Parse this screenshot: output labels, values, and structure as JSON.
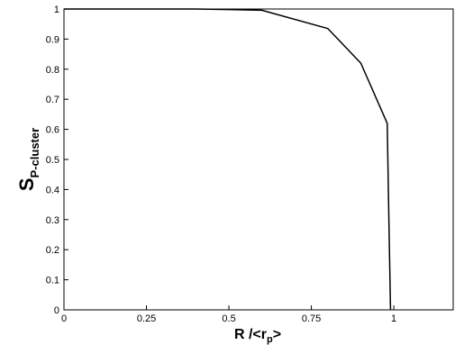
{
  "chart_data": {
    "type": "line",
    "title": "",
    "xlabel": {
      "main": "R /<r",
      "sub": "p",
      "suffix": ">"
    },
    "ylabel": {
      "main": "S",
      "sub": "P-cluster"
    },
    "xlim": [
      0,
      1.18
    ],
    "ylim": [
      0,
      1
    ],
    "x_ticks": [
      0,
      0.25,
      0.5,
      0.75,
      1
    ],
    "x_tick_labels": [
      "0",
      "0.25",
      "0.5",
      "0.75",
      "1"
    ],
    "y_ticks": [
      0,
      0.1,
      0.2,
      0.3,
      0.4,
      0.5,
      0.6,
      0.7,
      0.8,
      0.9,
      1
    ],
    "y_tick_labels": [
      "0",
      "0.1",
      "0.2",
      "0.3",
      "0.4",
      "0.5",
      "0.6",
      "0.7",
      "0.8",
      "0.9",
      "1"
    ],
    "grid": false,
    "legend": "none",
    "line_color": "#000000",
    "series": [
      {
        "x": [
          0,
          0.1,
          0.2,
          0.3,
          0.4,
          0.5,
          0.6,
          0.8,
          0.9,
          0.98,
          0.985,
          0.99
        ],
        "y": [
          1,
          1,
          1,
          1,
          1,
          0.998,
          0.996,
          0.935,
          0.82,
          0.62,
          0.3,
          0
        ]
      }
    ]
  }
}
